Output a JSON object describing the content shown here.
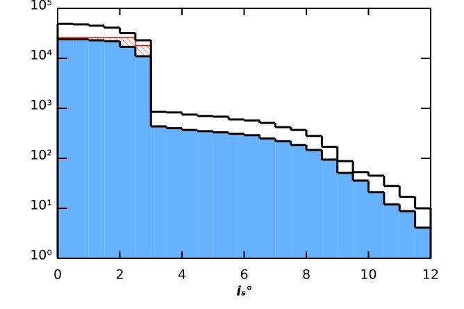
{
  "chart_data": {
    "type": "histogram",
    "xlabel": "iₛ°",
    "bins": [
      0,
      0.5,
      1,
      1.5,
      2,
      2.5,
      3,
      3.5,
      4,
      4.5,
      5,
      5.5,
      6,
      6.5,
      7,
      7.5,
      8,
      8.5,
      9,
      9.5,
      10,
      10.5,
      11,
      11.5,
      12
    ],
    "series": [
      {
        "color": "#66b2ff",
        "fill": true,
        "values": [
          24000,
          24000,
          23000,
          22000,
          17000,
          11000,
          435,
          400,
          370,
          350,
          330,
          310,
          290,
          250,
          220,
          185,
          147,
          94,
          51,
          36,
          21,
          12,
          8.8,
          4.1
        ]
      },
      {
        "color": "#ff0000",
        "hatch": true,
        "values": [
          26000,
          26000,
          26000,
          26000,
          26000,
          18000,
          null,
          null,
          null,
          null,
          null,
          null,
          null,
          null,
          null,
          null,
          null,
          null,
          null,
          null,
          null,
          null,
          null,
          null
        ]
      },
      {
        "color": "#000000",
        "values": [
          49000,
          48000,
          45000,
          41000,
          32000,
          23000,
          850,
          830,
          750,
          700,
          680,
          600,
          570,
          510,
          420,
          370,
          280,
          170,
          88,
          53,
          45,
          28,
          17,
          10
        ]
      },
      {
        "color": "#000000",
        "values": [
          24000,
          24000,
          23000,
          22000,
          17000,
          11000,
          435,
          400,
          370,
          350,
          330,
          310,
          290,
          250,
          220,
          185,
          147,
          94,
          51,
          36,
          21,
          12,
          8.8,
          4.1
        ]
      }
    ],
    "xlim": [
      0,
      12
    ],
    "xticks": [
      0,
      2,
      4,
      6,
      8,
      10,
      12
    ],
    "ylim": [
      1,
      100000
    ],
    "ylog": true,
    "yticks": [
      {
        "value": 1,
        "label": "10⁰"
      },
      {
        "value": 10,
        "label": "10¹"
      },
      {
        "value": 100,
        "label": "10²"
      },
      {
        "value": 1000,
        "label": "10³"
      },
      {
        "value": 10000,
        "label": "10⁴"
      },
      {
        "value": 100000,
        "label": "10⁵"
      }
    ]
  }
}
